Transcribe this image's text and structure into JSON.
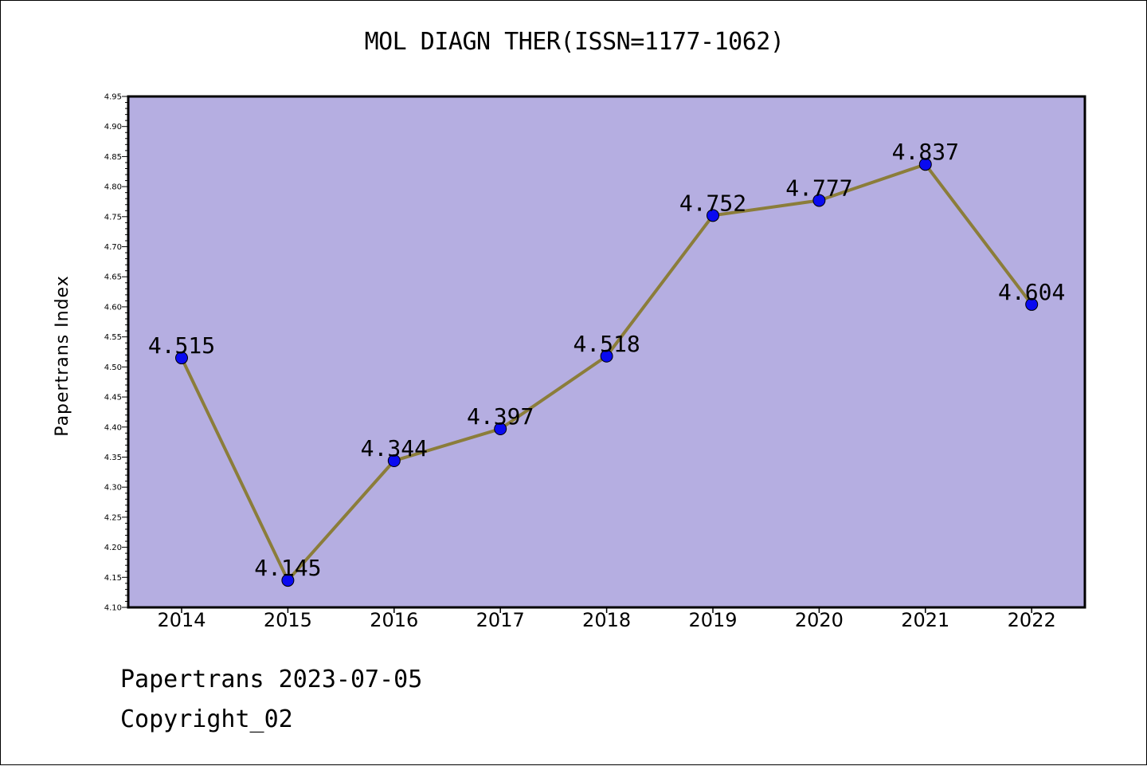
{
  "chart_data": {
    "type": "line",
    "title": "MOL DIAGN THER(ISSN=1177-1062)",
    "xlabel": "",
    "ylabel": "Papertrans Index",
    "categories": [
      "2014",
      "2015",
      "2016",
      "2017",
      "2018",
      "2019",
      "2020",
      "2021",
      "2022"
    ],
    "series": [
      {
        "values": [
          4.515,
          4.145,
          4.344,
          4.397,
          4.518,
          4.752,
          4.777,
          4.837,
          4.604
        ]
      }
    ],
    "data_labels": [
      "4.515",
      "4.145",
      "4.344",
      "4.397",
      "4.518",
      "4.752",
      "4.777",
      "4.837",
      "4.604"
    ],
    "ylim": [
      4.1,
      4.95
    ],
    "yticks": [
      "4.10",
      "4.15",
      "4.20",
      "4.25",
      "4.30",
      "4.35",
      "4.40",
      "4.45",
      "4.50",
      "4.55",
      "4.60",
      "4.65",
      "4.70",
      "4.75",
      "4.80",
      "4.85",
      "4.90",
      "4.95"
    ],
    "grid": false,
    "legend": "none",
    "colors": {
      "plot_background": "#b5aee1",
      "line": "#8b7d3a",
      "marker": "#0a0af0",
      "axis": "#000000"
    }
  },
  "footer": {
    "line1": "Papertrans 2023-07-05",
    "line2": "Copyright_02"
  }
}
